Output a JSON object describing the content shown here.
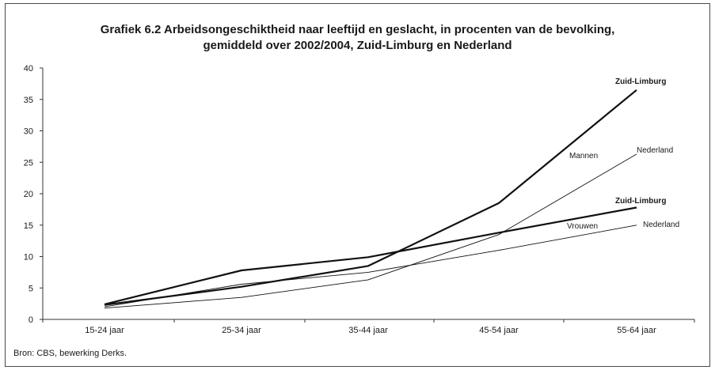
{
  "chart_data": {
    "type": "line",
    "title_line1": "Grafiek 6.2 Arbeidsongeschiktheid naar leeftijd en geslacht, in procenten van de bevolking,",
    "title_line2": "gemiddeld over 2002/2004, Zuid-Limburg en Nederland",
    "categories": [
      "15-24 jaar",
      "25-34 jaar",
      "35-44 jaar",
      "45-54 jaar",
      "55-64 jaar"
    ],
    "ylim": [
      0,
      40
    ],
    "yticks": [
      0,
      5,
      10,
      15,
      20,
      25,
      30,
      35,
      40
    ],
    "grid": false,
    "series": [
      {
        "name": "Zuid-Limburg",
        "group": "Mannen",
        "values": [
          2.3,
          5.2,
          8.5,
          18.5,
          36.5
        ],
        "style": "thick"
      },
      {
        "name": "Nederland",
        "group": "Mannen",
        "values": [
          1.8,
          3.5,
          6.3,
          13.5,
          26.3
        ],
        "style": "thin"
      },
      {
        "name": "Zuid-Limburg",
        "group": "Vrouwen",
        "values": [
          2.4,
          7.8,
          9.9,
          13.8,
          17.8
        ],
        "style": "thick"
      },
      {
        "name": "Nederland",
        "group": "Vrouwen",
        "values": [
          2.0,
          5.6,
          7.5,
          11.0,
          15.0
        ],
        "style": "thin"
      }
    ],
    "annotations": {
      "mannen": "Mannen",
      "vrouwen": "Vrouwen",
      "zl_mannen": "Zuid-Limburg",
      "nl_mannen": "Nederland",
      "zl_vrouwen": "Zuid-Limburg",
      "nl_vrouwen": "Nederland"
    },
    "source": "Bron: CBS, bewerking Derks."
  }
}
